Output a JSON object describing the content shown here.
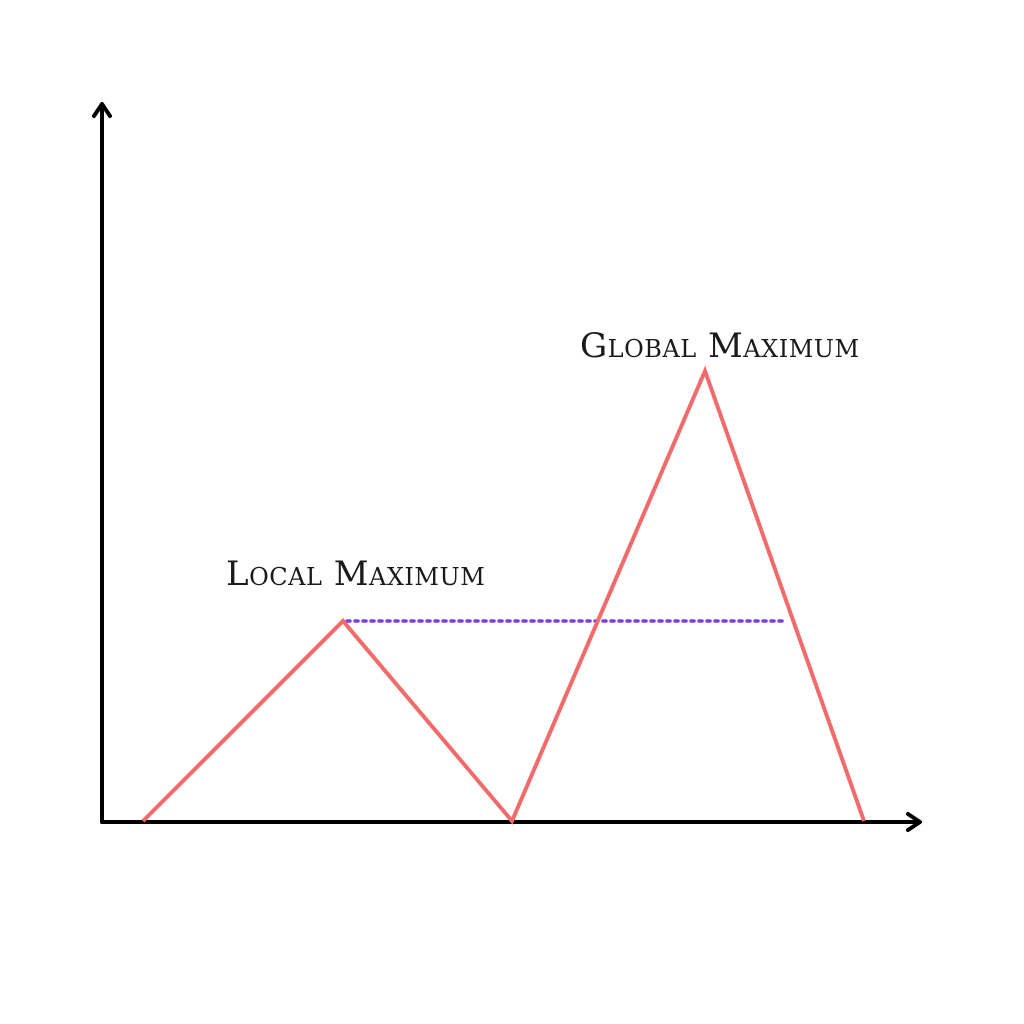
{
  "chart_data": {
    "type": "line",
    "title": "",
    "xlabel": "",
    "ylabel": "",
    "grid": false,
    "series": [
      {
        "values": [
          0,
          2,
          0,
          4.5,
          0
        ],
        "color": "#f26b6b"
      }
    ],
    "reference_line": {
      "from_peak": 1,
      "style": "dotted",
      "color": "#7b3fe4",
      "value": 2
    },
    "annotations": [
      {
        "peak": 1,
        "text": "Local Maximum"
      },
      {
        "peak": 3,
        "text": "Global Maximum"
      }
    ],
    "axes": {
      "color": "#000000",
      "arrowheads": true
    }
  }
}
